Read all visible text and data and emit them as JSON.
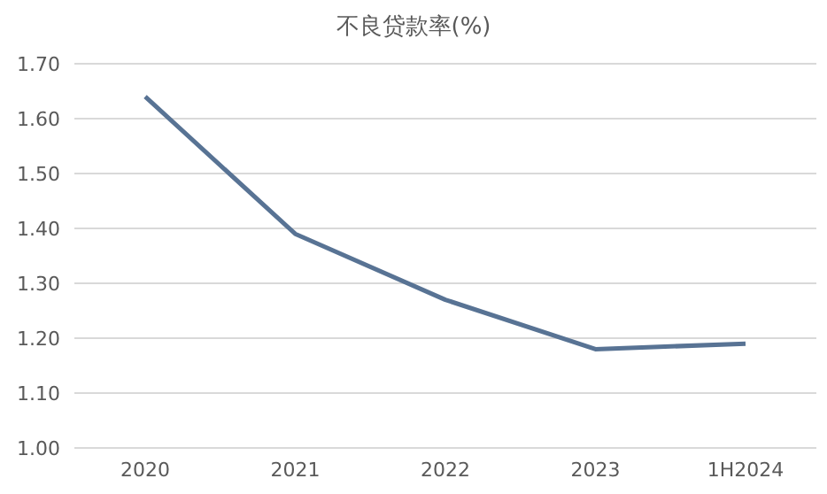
{
  "chart_data": {
    "type": "line",
    "title": "不良贷款率(%)",
    "categories": [
      "2020",
      "2021",
      "2022",
      "2023",
      "1H2024"
    ],
    "series": [
      {
        "color": "#587394",
        "values": [
          1.64,
          1.39,
          1.27,
          1.18,
          1.19
        ]
      }
    ],
    "ylim": [
      1.0,
      1.7
    ],
    "yticks": [
      {
        "value": 1.0,
        "label": "1.00"
      },
      {
        "value": 1.1,
        "label": "1.10"
      },
      {
        "value": 1.2,
        "label": "1.20"
      },
      {
        "value": 1.3,
        "label": "1.30"
      },
      {
        "value": 1.4,
        "label": "1.40"
      },
      {
        "value": 1.5,
        "label": "1.50"
      },
      {
        "value": 1.6,
        "label": "1.60"
      },
      {
        "value": 1.7,
        "label": "1.70"
      }
    ],
    "grid": "y",
    "legend": false,
    "marker": "none",
    "line_style": "solid"
  }
}
